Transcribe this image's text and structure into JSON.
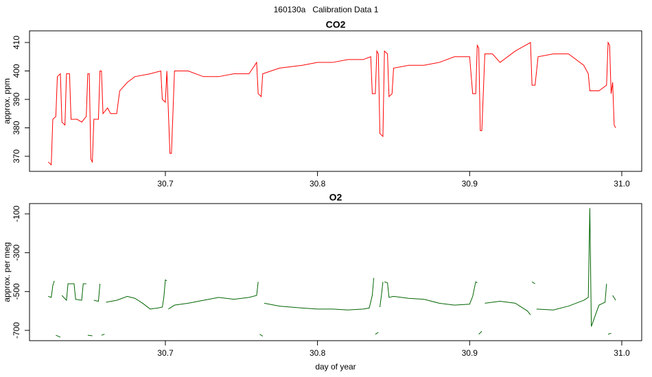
{
  "title": "160130a   Calibration Data 1",
  "chart_data": [
    {
      "type": "line",
      "title": "CO2",
      "ylabel": "approx. ppm",
      "xlim": [
        30.6107,
        31.0131
      ],
      "xticks": [
        30.7,
        30.8,
        30.9,
        {
          "value": 31,
          "label": "31.0"
        }
      ],
      "ylim": [
        364.7,
        414.1
      ],
      "yticks": [
        370,
        380,
        390,
        400,
        410
      ],
      "series": [
        {
          "name": "CO2",
          "color": "#ff0000",
          "x": [
            30.623,
            30.625,
            30.626,
            30.628,
            30.629,
            30.631,
            30.632,
            30.634,
            30.635,
            30.637,
            30.638,
            30.642,
            30.645,
            30.648,
            30.649,
            30.65,
            30.651,
            30.652,
            30.653,
            30.656,
            30.657,
            30.658,
            30.659,
            30.662,
            30.664,
            30.668,
            30.67,
            30.675,
            30.68,
            30.69,
            30.697,
            30.698,
            30.7,
            30.701,
            30.703,
            30.704,
            30.706,
            30.715,
            30.725,
            30.735,
            30.745,
            30.755,
            30.76,
            30.761,
            30.763,
            30.764,
            30.775,
            30.79,
            30.8,
            30.81,
            30.82,
            30.83,
            30.835,
            30.836,
            30.838,
            30.839,
            30.84,
            30.841,
            30.843,
            30.844,
            30.846,
            30.847,
            30.849,
            30.85,
            30.86,
            30.87,
            30.88,
            30.89,
            30.9,
            30.902,
            30.904,
            30.905,
            30.906,
            30.907,
            30.908,
            30.91,
            30.915,
            30.92,
            30.93,
            30.94,
            30.941,
            30.943,
            30.945,
            30.955,
            30.965,
            30.975,
            30.978,
            30.979,
            30.985,
            30.99,
            30.991,
            30.992,
            30.993,
            30.994,
            30.995,
            30.996
          ],
          "values": [
            368,
            367,
            383,
            384,
            398,
            399,
            382,
            381,
            399,
            399,
            383,
            383,
            382,
            384,
            399,
            399,
            369,
            368,
            383,
            383,
            400,
            400,
            385,
            387,
            385,
            385,
            393,
            396,
            398,
            399,
            400,
            390,
            389,
            400,
            371,
            371,
            400,
            400,
            398,
            398,
            399,
            399,
            403,
            392,
            391,
            399,
            401,
            402,
            403,
            403,
            404,
            404,
            405,
            392,
            392,
            407,
            406,
            378,
            377,
            407,
            406,
            391,
            392,
            401,
            402,
            402,
            403,
            405,
            405,
            392,
            392,
            409,
            408,
            379,
            379,
            406,
            406,
            403,
            407,
            410,
            395,
            395,
            405,
            406,
            406,
            402,
            399,
            393,
            393,
            395,
            410,
            409,
            392,
            396,
            381,
            380
          ]
        }
      ]
    },
    {
      "type": "line",
      "title": "O2",
      "ylabel": "approx. per meg",
      "xlabel": "day of year",
      "xlim": [
        30.6107,
        31.0131
      ],
      "xticks": [
        30.7,
        30.8,
        30.9,
        {
          "value": 31,
          "label": "31.0"
        }
      ],
      "ylim": [
        -753,
        -47
      ],
      "yticks": [
        -100,
        -300,
        -500,
        -700
      ],
      "series": [
        {
          "name": "O2",
          "color": "#006400",
          "x": [
            30.623,
            30.625,
            30.626,
            30.627,
            30.6275,
            30.628,
            30.631,
            30.6315,
            30.632,
            30.635,
            30.636,
            30.64,
            30.641,
            30.645,
            30.646,
            30.648,
            30.6485,
            30.649,
            30.652,
            30.6525,
            30.653,
            30.656,
            30.657,
            30.6575,
            30.658,
            30.66,
            30.6605,
            30.661,
            30.668,
            30.675,
            30.68,
            30.685,
            30.69,
            30.695,
            30.698,
            30.699,
            30.7,
            30.701,
            30.7015,
            30.702,
            30.706,
            30.715,
            30.725,
            30.735,
            30.745,
            30.755,
            30.76,
            30.761,
            30.7615,
            30.762,
            30.764,
            30.7645,
            30.765,
            30.775,
            30.79,
            30.8,
            30.81,
            30.82,
            30.83,
            30.834,
            30.836,
            30.837,
            30.8375,
            30.838,
            30.84,
            30.8405,
            30.841,
            30.842,
            30.843,
            30.8435,
            30.844,
            30.846,
            30.847,
            30.85,
            30.86,
            30.87,
            30.88,
            30.89,
            30.9,
            30.902,
            30.904,
            30.905,
            30.9055,
            30.906,
            30.908,
            30.9085,
            30.91,
            30.92,
            30.93,
            30.938,
            30.94,
            30.9405,
            30.941,
            30.943,
            30.9435,
            30.944,
            30.955,
            30.965,
            30.975,
            30.978,
            30.979,
            30.98,
            30.985,
            30.989,
            30.99,
            30.9905,
            30.991,
            30.993,
            30.9935,
            30.994,
            30.996
          ],
          "values": [
            -525,
            -530,
            -470,
            -445,
            null,
            -725,
            -735,
            null,
            -520,
            -545,
            -460,
            -460,
            -540,
            -545,
            -460,
            -460,
            null,
            -725,
            -728,
            null,
            -545,
            -550,
            -460,
            null,
            -725,
            -720,
            null,
            -555,
            -545,
            -525,
            -535,
            -560,
            -590,
            -585,
            -580,
            -530,
            -440,
            -445,
            null,
            -590,
            -570,
            -560,
            -545,
            -530,
            -540,
            -530,
            -520,
            -450,
            null,
            -720,
            -730,
            null,
            -560,
            -575,
            -585,
            -590,
            -590,
            -595,
            -590,
            -585,
            -520,
            -430,
            null,
            -720,
            -710,
            null,
            -580,
            -520,
            -450,
            null,
            -450,
            -455,
            -530,
            -525,
            -535,
            -540,
            -560,
            -570,
            -565,
            -525,
            -450,
            -455,
            null,
            -720,
            -705,
            null,
            -560,
            -550,
            -560,
            -600,
            -620,
            null,
            -450,
            -460,
            null,
            -590,
            -595,
            -575,
            -545,
            -530,
            -70,
            -680,
            -570,
            -555,
            -460,
            null,
            -720,
            -715,
            null,
            -520,
            -545
          ]
        }
      ]
    }
  ]
}
